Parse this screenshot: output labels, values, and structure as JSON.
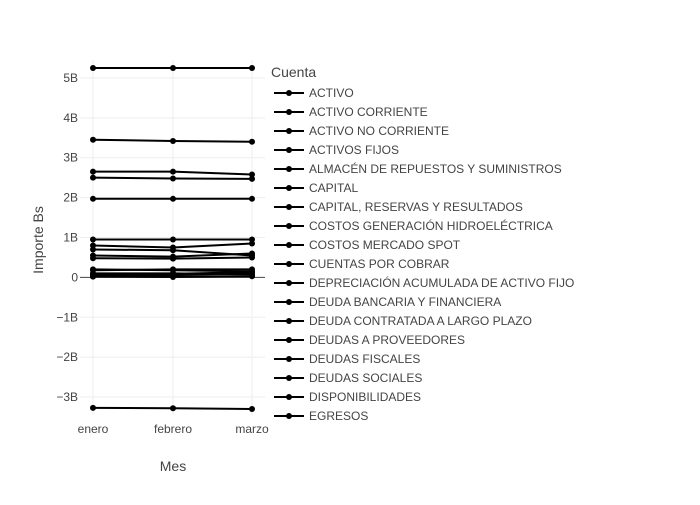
{
  "chart_data": {
    "type": "line",
    "x": [
      "enero",
      "febrero",
      "marzo"
    ],
    "xlabel": "Mes",
    "ylabel": "Importe Bs",
    "ylim": [
      -3.45,
      5.45
    ],
    "yticks": [
      -3,
      -2,
      -1,
      0,
      1,
      2,
      3,
      4,
      5
    ],
    "ytick_labels": [
      "−3B",
      "−2B",
      "−1B",
      "0",
      "1B",
      "2B",
      "3B",
      "4B",
      "5B"
    ],
    "legend_title": "Cuenta",
    "legend_position": "right",
    "grid": true,
    "line_color": "#000000",
    "series": [
      {
        "name": "ACTIVO",
        "values": [
          5.25,
          5.25,
          5.25
        ]
      },
      {
        "name": "ACTIVO CORRIENTE",
        "values": [
          0.8,
          0.75,
          0.85
        ]
      },
      {
        "name": "ACTIVO NO CORRIENTE",
        "values": [
          3.45,
          3.42,
          3.4
        ]
      },
      {
        "name": "ACTIVOS FIJOS",
        "values": [
          2.65,
          2.65,
          2.58
        ]
      },
      {
        "name": "ALMACÉN DE REPUESTOS Y SUMINISTROS",
        "values": [
          0.03,
          0.03,
          0.03
        ]
      },
      {
        "name": "CAPITAL",
        "values": [
          1.97,
          1.97,
          1.97
        ]
      },
      {
        "name": "CAPITAL, RESERVAS Y RESULTADOS",
        "values": [
          2.5,
          2.48,
          2.47
        ]
      },
      {
        "name": "COSTOS GENERACIÓN HIDROELÉCTRICA",
        "values": [
          0.05,
          0.09,
          0.13
        ]
      },
      {
        "name": "COSTOS MERCADO SPOT",
        "values": [
          0.02,
          0.01,
          0.03
        ]
      },
      {
        "name": "CUENTAS POR COBRAR",
        "values": [
          0.55,
          0.52,
          0.6
        ]
      },
      {
        "name": "DEPRECIACIÓN ACUMULADA DE ACTIVO FIJO",
        "values": [
          0.7,
          0.68,
          0.55
        ]
      },
      {
        "name": "DEUDA BANCARIA Y FINANCIERA",
        "values": [
          0.95,
          0.95,
          0.95
        ]
      },
      {
        "name": "DEUDA CONTRATADA A LARGO PLAZO",
        "values": [
          0.48,
          0.47,
          0.5
        ]
      },
      {
        "name": "DEUDAS A PROVEEDORES",
        "values": [
          0.1,
          0.1,
          0.08
        ]
      },
      {
        "name": "DEUDAS FISCALES",
        "values": [
          0.18,
          0.2,
          0.2
        ]
      },
      {
        "name": "DEUDAS SOCIALES",
        "values": [
          0.08,
          0.07,
          0.1
        ]
      },
      {
        "name": "DISPONIBILIDADES",
        "values": [
          0.2,
          0.18,
          0.15
        ]
      },
      {
        "name": "EGRESOS",
        "values": [
          -3.27,
          -3.28,
          -3.3
        ]
      }
    ]
  }
}
